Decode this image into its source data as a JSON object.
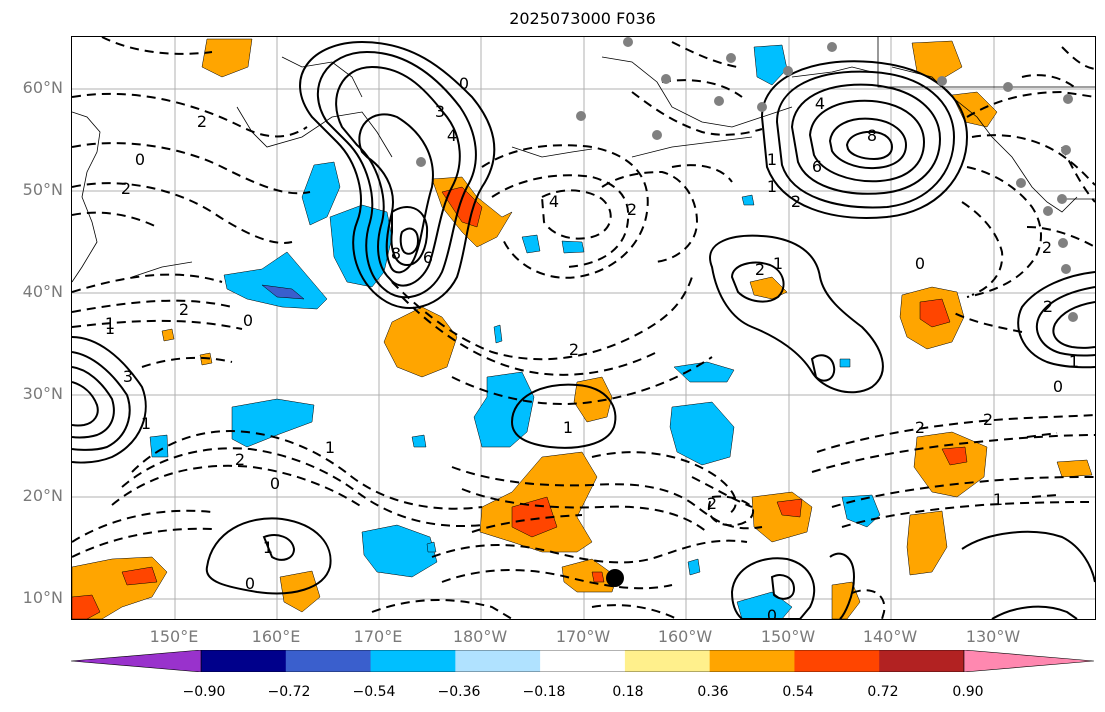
{
  "title": "2025073000 F036",
  "lat_labels": [
    "60°N",
    "50°N",
    "40°N",
    "30°N",
    "20°N",
    "10°N"
  ],
  "lon_labels": [
    "150°E",
    "160°E",
    "170°E",
    "180°W",
    "170°W",
    "160°W",
    "150°W",
    "140°W",
    "130°W"
  ],
  "colorbar": {
    "ticks": [
      "−0.90",
      "−0.72",
      "−0.54",
      "−0.36",
      "−0.18",
      "0.18",
      "0.36",
      "0.54",
      "0.72",
      "0.90"
    ],
    "colors": [
      "#9932cc",
      "#00008b",
      "#3a5fcd",
      "#00bfff",
      "#b0e2ff",
      "#ffffff",
      "#fff08c",
      "#ffa500",
      "#ff4500",
      "#b22222",
      "#ff88b0"
    ]
  },
  "contour_labels": [
    "0",
    "2",
    "3",
    "4",
    "6",
    "8",
    "1",
    "0",
    "1",
    "2",
    "3",
    "4",
    "6",
    "8",
    "2",
    "1",
    "0",
    "2",
    "1",
    "2",
    "4",
    "2",
    "1",
    "0",
    "1",
    "2",
    "0",
    "1",
    "2",
    "1",
    "2",
    "0",
    "1",
    "2",
    "1",
    "0",
    "0",
    "2",
    "2",
    "1",
    "2"
  ],
  "colors": {
    "grid": "#b0b0b0",
    "contour": "#000000",
    "coast": "#000000",
    "station": "#808080"
  }
}
